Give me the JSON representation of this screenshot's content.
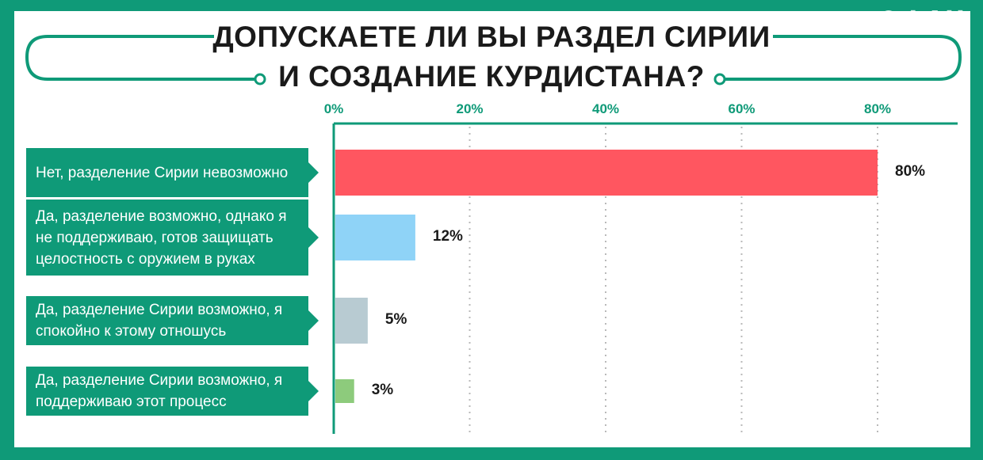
{
  "watermark": "©ФАН",
  "chart_data": {
    "type": "bar",
    "orientation": "horizontal",
    "title_lines": [
      "ДОПУСКАЕТЕ ЛИ ВЫ РАЗДЕЛ СИРИИ",
      "И СОЗДАНИЕ КУРДИСТАНА?"
    ],
    "categories": [
      "Нет, разделение Сирии невозможно",
      "Да, разделение возможно, однако я не поддерживаю, готов защищать целостность с оружием в руках",
      "Да, разделение Сирии возможно, я спокойно к этому отношусь",
      "Да, разделение Сирии возможно, я поддерживаю этот процесс"
    ],
    "values": [
      80,
      12,
      5,
      3
    ],
    "value_labels": [
      "80%",
      "12%",
      "5%",
      "3%"
    ],
    "xlim": [
      0,
      90
    ],
    "ticks": [
      0,
      20,
      40,
      60,
      80
    ],
    "tick_labels": [
      "0%",
      "20%",
      "40%",
      "60%",
      "80%"
    ],
    "colors": [
      "#ff5660",
      "#8fd3f7",
      "#b8cbd2",
      "#8dcb7c"
    ],
    "grid": true,
    "legend": "none"
  },
  "colors": {
    "background": "#0f9a78",
    "accent": "#0f9a78"
  }
}
